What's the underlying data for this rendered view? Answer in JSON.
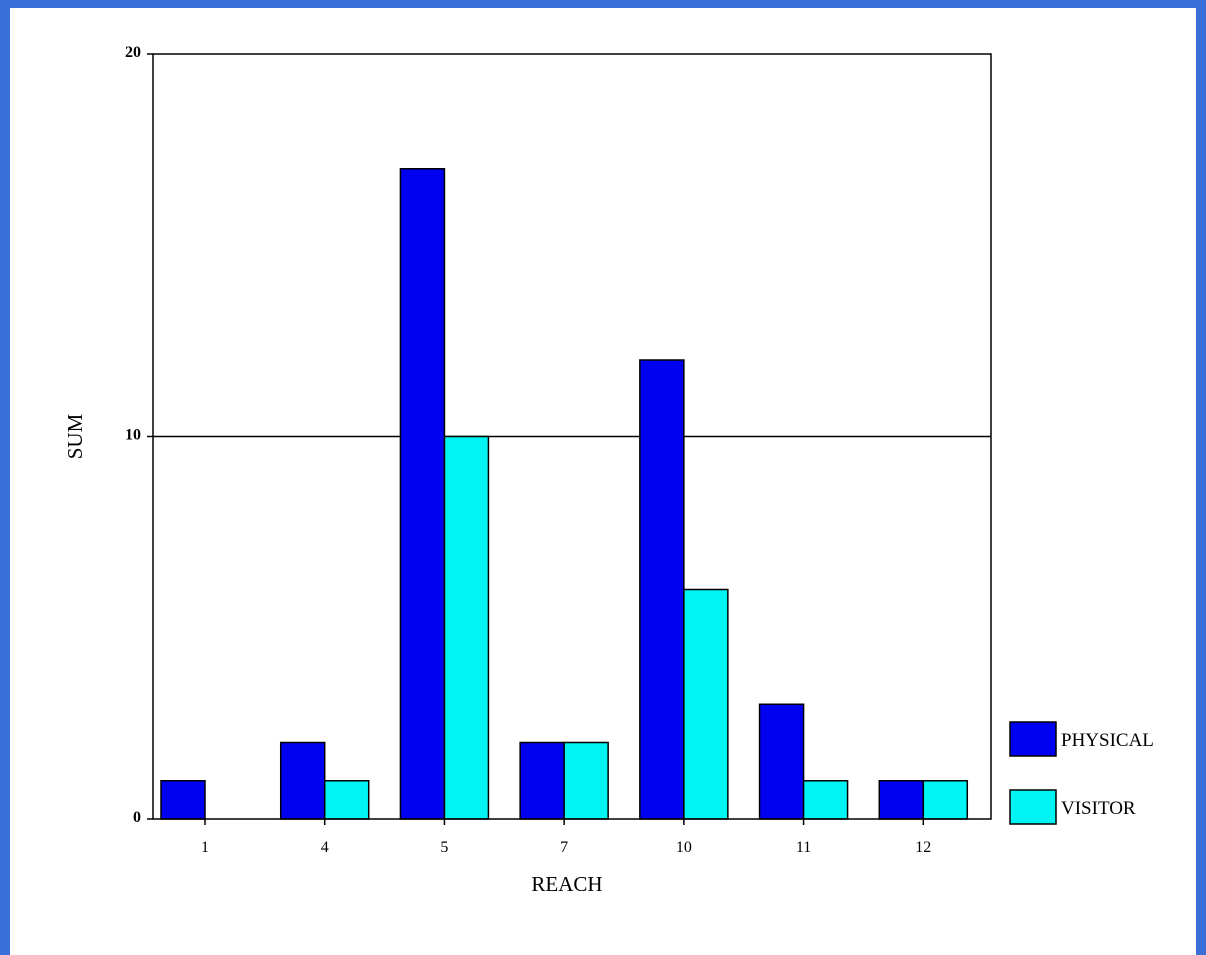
{
  "chart_data": {
    "type": "bar",
    "title": "",
    "xlabel": "REACH",
    "ylabel": "SUM",
    "ylim": [
      0,
      20
    ],
    "yticks": [
      "0",
      "10",
      "20"
    ],
    "categories": [
      "1",
      "4",
      "5",
      "7",
      "10",
      "11",
      "12"
    ],
    "series": [
      {
        "name": "PHYSICAL",
        "color": "#0000f0",
        "values": [
          1,
          2,
          17,
          2,
          12,
          3,
          1
        ]
      },
      {
        "name": "VISITOR",
        "color": "#00f4f4",
        "values": [
          0,
          1,
          10,
          2,
          6,
          1,
          1
        ]
      }
    ],
    "gridlines": [
      10
    ],
    "legend": "right"
  }
}
